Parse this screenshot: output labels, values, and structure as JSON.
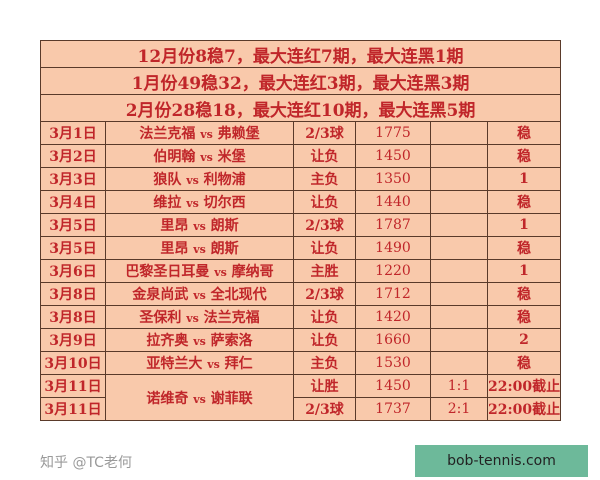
{
  "summary": [
    "12月份8稳7，最大连红7期，最大连黑1期",
    "1月份49稳32，最大连红3期，最大连黑3期",
    "2月份28稳18，最大连红10期，最大连黑5期"
  ],
  "rows": [
    {
      "date": "3月1日",
      "home": "法兰克福",
      "away": "弗赖堡",
      "bet": "2/3球",
      "num": "1775",
      "score": "",
      "result": "稳"
    },
    {
      "date": "3月2日",
      "home": "伯明翰",
      "away": "米堡",
      "bet": "让负",
      "num": "1450",
      "score": "",
      "result": "稳"
    },
    {
      "date": "3月3日",
      "home": "狼队",
      "away": "利物浦",
      "bet": "主负",
      "num": "1350",
      "score": "",
      "result": "1"
    },
    {
      "date": "3月4日",
      "home": "维拉",
      "away": "切尔西",
      "bet": "让负",
      "num": "1440",
      "score": "",
      "result": "稳"
    },
    {
      "date": "3月5日",
      "home": "里昂",
      "away": "朗斯",
      "bet": "2/3球",
      "num": "1787",
      "score": "",
      "result": "1"
    },
    {
      "date": "3月5日",
      "home": "里昂",
      "away": "朗斯",
      "bet": "让负",
      "num": "1490",
      "score": "",
      "result": "稳"
    },
    {
      "date": "3月6日",
      "home": "巴黎圣日耳曼",
      "away": "摩纳哥",
      "bet": "主胜",
      "num": "1220",
      "score": "",
      "result": "1"
    },
    {
      "date": "3月8日",
      "home": "金泉尚武",
      "away": "全北现代",
      "bet": "2/3球",
      "num": "1712",
      "score": "",
      "result": "稳"
    },
    {
      "date": "3月8日",
      "home": "圣保利",
      "away": "法兰克福",
      "bet": "让负",
      "num": "1420",
      "score": "",
      "result": "稳"
    },
    {
      "date": "3月9日",
      "home": "拉齐奥",
      "away": "萨索洛",
      "bet": "让负",
      "num": "1660",
      "score": "",
      "result": "2"
    },
    {
      "date": "3月10日",
      "home": "亚特兰大",
      "away": "拜仁",
      "bet": "主负",
      "num": "1530",
      "score": "",
      "result": "稳"
    }
  ],
  "last": {
    "dates": [
      "3月11日",
      "3月11日"
    ],
    "home": "诺维奇",
    "away": "谢菲联",
    "bets": [
      "让胜",
      "2/3球"
    ],
    "nums": [
      "1450",
      "1737"
    ],
    "scores": [
      "1:1",
      "2:1"
    ],
    "results": [
      "22:00截止",
      "22:00截止"
    ]
  },
  "vs": "vs",
  "watermark": "知乎 @TC老何",
  "site": "bob-tennis.com",
  "colors": {
    "cell_bg": "#f9c9ab",
    "text": "#c0262a",
    "border": "#5a3a2a",
    "site_bg": "#6db99a"
  }
}
